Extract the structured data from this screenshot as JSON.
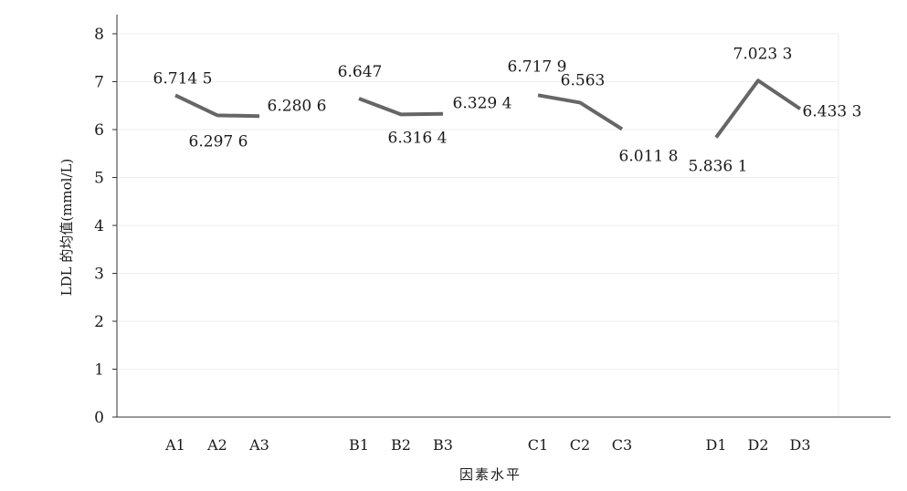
{
  "chart_data": {
    "type": "line",
    "xlabel": "因素水平",
    "ylabel": "LDL 的均值(mmol/L)",
    "ylim": [
      0,
      8
    ],
    "yticks": [
      "0",
      "1",
      "2",
      "3",
      "4",
      "5",
      "6",
      "7",
      "8"
    ],
    "grid": true,
    "legend": "none",
    "line_color": "#666666",
    "groups": [
      {
        "categories": [
          "A1",
          "A2",
          "A3"
        ],
        "values": [
          6.7145,
          6.2976,
          6.2806
        ],
        "labels": [
          "6.714 5",
          "6.297 6",
          "6.280 6"
        ]
      },
      {
        "categories": [
          "B1",
          "B2",
          "B3"
        ],
        "values": [
          6.647,
          6.3164,
          6.3294
        ],
        "labels": [
          "6.647",
          "6.316 4",
          "6.329 4"
        ]
      },
      {
        "categories": [
          "C1",
          "C2",
          "C3"
        ],
        "values": [
          6.7179,
          6.563,
          6.0118
        ],
        "labels": [
          "6.717 9",
          "6.563",
          "6.011 8"
        ]
      },
      {
        "categories": [
          "D1",
          "D2",
          "D3"
        ],
        "values": [
          5.8361,
          7.0233,
          6.4333
        ],
        "labels": [
          "5.836 1",
          "7.023 3",
          "6.433 3"
        ]
      }
    ]
  }
}
